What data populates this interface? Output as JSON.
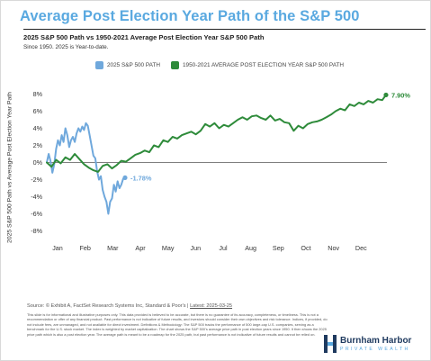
{
  "title": "Average Post Election Year Path of the S&P 500",
  "subtitle": "2025 S&P 500 Path vs 1950-2021 Average Post Election Year S&P 500 Path",
  "note": "Since 1950. 2025 is Year-to-date.",
  "source_prefix": "Source: © Exhibit A, FactSet Research Systems Inc, Standard & Poor's | ",
  "source_date": "Latest: 2025-03-25",
  "disclaimer": "This slide is for informational and illustrative purposes only. This data provided is believed to be accurate, but there is no guarantee of its accuracy, completeness, or timeliness. This is not a recommendation or offer of any financial product. Past performance is not indicative of future results, and investors should consider their own objectives and risk tolerance. Indices, if provided, do not include fees, are unmanaged, and not available for direct investment. Definitions & Methodology: The S&P 500 tracks the performance of 500 large-cap U.S. companies, serving as a benchmark for the U.S. stock market. The index is weighted by market capitalization. The chart shows the S&P 500's average price path in post election years since 1950. It then shows the 2025 price path which is also a post election year. The average path is meant to be a roadmap for the 2025 path, but past performance is not indicative of future results and cannot be relied on.",
  "logo": {
    "name": "Burnham Harbor",
    "tagline": "PRIVATE WEALTH"
  },
  "colors": {
    "accent": "#5aa9e0",
    "series_2025": "#6fa8dc",
    "series_avg": "#2e8b3a",
    "logo_navy": "#1f3a5f"
  },
  "chart_data": {
    "type": "line",
    "ylabel": "2025 S&P 500 Path vs Average Post Election Year Path",
    "xlabel": "",
    "ylim": [
      -9,
      9
    ],
    "y_ticks": [
      8,
      6,
      4,
      2,
      0,
      -2,
      -4,
      -6,
      -8
    ],
    "y_tick_labels": [
      "8%",
      "6%",
      "4%",
      "2%",
      "0%",
      "-2%",
      "-4%",
      "-6%",
      "-8%"
    ],
    "x_tick_labels": [
      "Jan",
      "Feb",
      "Mar",
      "Apr",
      "May",
      "Jun",
      "Jul",
      "Aug",
      "Sep",
      "Oct",
      "Nov",
      "Dec"
    ],
    "x_range_days": [
      0,
      365
    ],
    "zero_line": true,
    "grid": false,
    "legend_position": "top",
    "series": [
      {
        "name": "2025 S&P 500 PATH",
        "color": "#6fa8dc",
        "end_label": "-1.78%",
        "x": [
          0,
          2,
          4,
          6,
          8,
          10,
          12,
          14,
          16,
          18,
          20,
          22,
          24,
          26,
          28,
          30,
          32,
          34,
          36,
          38,
          40,
          42,
          44,
          46,
          48,
          50,
          52,
          54,
          56,
          58,
          60,
          62,
          64,
          66,
          68,
          70,
          72,
          74,
          76,
          78,
          80,
          82,
          84
        ],
        "y": [
          0.0,
          1.0,
          0.2,
          -1.2,
          -0.2,
          1.6,
          2.6,
          2.0,
          3.2,
          2.4,
          4.0,
          3.2,
          1.8,
          2.6,
          3.0,
          2.4,
          3.4,
          4.0,
          3.6,
          4.2,
          3.8,
          4.6,
          4.3,
          3.2,
          2.0,
          0.8,
          0.5,
          -1.0,
          -2.0,
          -1.6,
          -3.2,
          -4.0,
          -4.6,
          -6.0,
          -4.6,
          -4.2,
          -2.6,
          -3.4,
          -2.2,
          -3.0,
          -2.6,
          -1.9,
          -1.78
        ]
      },
      {
        "name": "1950-2021 AVERAGE POST ELECTION YEAR S&P 500 PATH",
        "color": "#2e8b3a",
        "end_label": "7.90%",
        "x": [
          0,
          5,
          10,
          15,
          20,
          25,
          30,
          35,
          40,
          45,
          50,
          55,
          60,
          65,
          70,
          75,
          80,
          85,
          90,
          95,
          100,
          105,
          110,
          115,
          120,
          125,
          130,
          135,
          140,
          145,
          150,
          155,
          160,
          165,
          170,
          175,
          180,
          185,
          190,
          195,
          200,
          205,
          210,
          215,
          220,
          225,
          230,
          235,
          240,
          245,
          250,
          255,
          260,
          265,
          270,
          275,
          280,
          285,
          290,
          295,
          300,
          305,
          310,
          315,
          320,
          325,
          330,
          335,
          340,
          345,
          350,
          355,
          360,
          364
        ],
        "y": [
          0.0,
          -0.5,
          0.3,
          -0.1,
          0.6,
          0.3,
          1.0,
          0.4,
          -0.2,
          -0.6,
          -0.9,
          -1.1,
          -0.4,
          -0.2,
          -0.7,
          -0.3,
          0.2,
          0.1,
          0.5,
          0.9,
          1.1,
          1.4,
          1.2,
          2.0,
          1.8,
          2.6,
          2.4,
          3.0,
          2.8,
          3.2,
          3.4,
          3.6,
          3.3,
          3.7,
          4.5,
          4.2,
          4.6,
          4.0,
          4.4,
          4.2,
          4.6,
          5.0,
          5.3,
          5.0,
          5.4,
          5.5,
          5.2,
          5.0,
          5.5,
          4.9,
          5.1,
          4.7,
          4.6,
          3.7,
          4.3,
          4.0,
          4.5,
          4.7,
          4.8,
          5.0,
          5.3,
          5.6,
          6.0,
          6.3,
          6.1,
          6.8,
          6.6,
          7.0,
          6.8,
          7.2,
          7.0,
          7.4,
          7.3,
          7.9
        ]
      }
    ]
  }
}
